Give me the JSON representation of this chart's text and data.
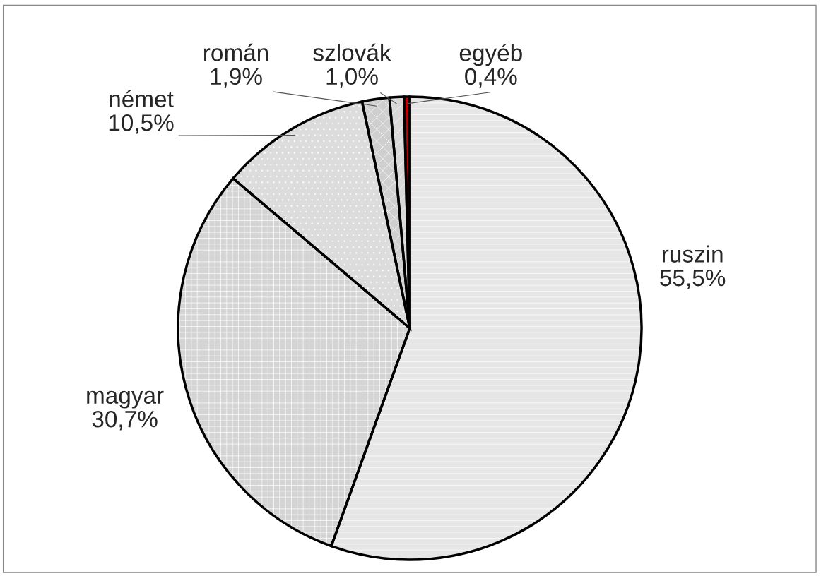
{
  "chart_data": {
    "type": "pie",
    "categories": [
      "ruszin",
      "magyar",
      "német",
      "román",
      "szlovák",
      "egyéb"
    ],
    "values": [
      55.5,
      30.7,
      10.5,
      1.9,
      1.0,
      0.4
    ],
    "value_labels": [
      "55,5%",
      "30,7%",
      "10,5%",
      "1,9%",
      "1,0%",
      "0,4%"
    ],
    "colors": [
      "#e6e6e6",
      "#d4d4d4",
      "#dcdcdc",
      "#cfcfcf",
      "#d8d8d8",
      "#c00000"
    ]
  }
}
